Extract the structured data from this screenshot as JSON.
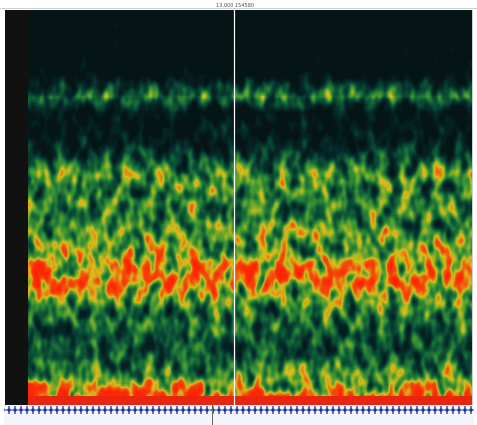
{
  "cursor_label": "13.000 154580"
}
